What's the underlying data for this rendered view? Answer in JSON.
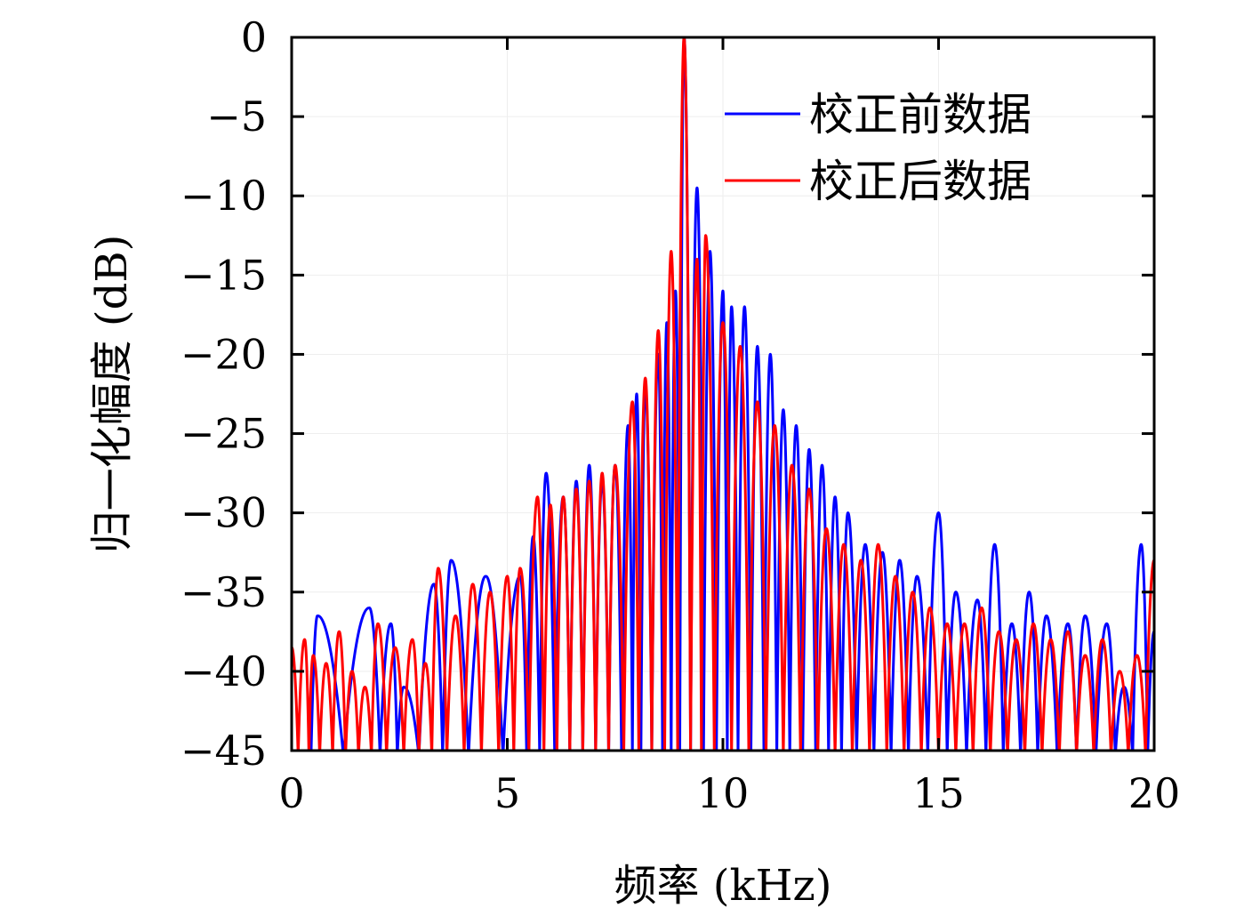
{
  "chart_data": {
    "type": "line",
    "xlabel": "频率 (kHz)",
    "ylabel": "归一化幅度 (dB)",
    "xlim": [
      0,
      20
    ],
    "ylim": [
      -45,
      0
    ],
    "xticks": [
      0,
      5,
      10,
      15,
      20
    ],
    "xtick_labels": [
      "0",
      "5",
      "10",
      "15",
      "20"
    ],
    "yticks": [
      0,
      -5,
      -10,
      -15,
      -20,
      -25,
      -30,
      -35,
      -40,
      -45
    ],
    "ytick_labels": [
      "0",
      "−5",
      "−10",
      "−15",
      "−20",
      "−25",
      "−30",
      "−35",
      "−40",
      "−45"
    ],
    "grid": true,
    "legend_position": "top-right",
    "series": [
      {
        "name": "校正前数据",
        "color": "#0000ff",
        "peaks": [
          [
            0.6,
            -36.5
          ],
          [
            1.8,
            -36
          ],
          [
            2.3,
            -37
          ],
          [
            2.6,
            -41
          ],
          [
            3.3,
            -34.5
          ],
          [
            3.7,
            -33
          ],
          [
            4.5,
            -34
          ],
          [
            5.3,
            -34
          ],
          [
            5.6,
            -31.5
          ],
          [
            5.9,
            -27.5
          ],
          [
            6.3,
            -29
          ],
          [
            6.6,
            -28
          ],
          [
            6.9,
            -27
          ],
          [
            7.2,
            -28
          ],
          [
            7.5,
            -27
          ],
          [
            7.8,
            -24.5
          ],
          [
            8.0,
            -22.5
          ],
          [
            8.2,
            -22
          ],
          [
            8.5,
            -20
          ],
          [
            8.7,
            -18
          ],
          [
            8.9,
            -16
          ],
          [
            9.1,
            0
          ],
          [
            9.4,
            -9.5
          ],
          [
            9.7,
            -13.5
          ],
          [
            10.0,
            -16
          ],
          [
            10.2,
            -17
          ],
          [
            10.5,
            -17
          ],
          [
            10.8,
            -19.5
          ],
          [
            11.1,
            -20
          ],
          [
            11.4,
            -23.5
          ],
          [
            11.7,
            -24.5
          ],
          [
            12.0,
            -26
          ],
          [
            12.3,
            -27
          ],
          [
            12.6,
            -29
          ],
          [
            12.9,
            -30
          ],
          [
            13.3,
            -32
          ],
          [
            13.7,
            -32.5
          ],
          [
            14.1,
            -33
          ],
          [
            14.5,
            -34
          ],
          [
            15.0,
            -30
          ],
          [
            15.4,
            -35
          ],
          [
            15.9,
            -35.5
          ],
          [
            16.3,
            -32
          ],
          [
            16.7,
            -37
          ],
          [
            17.1,
            -35
          ],
          [
            17.5,
            -36.5
          ],
          [
            18.0,
            -37
          ],
          [
            18.4,
            -36.5
          ],
          [
            18.9,
            -37
          ],
          [
            19.3,
            -41
          ],
          [
            19.7,
            -32
          ],
          [
            20.0,
            -37.5
          ]
        ]
      },
      {
        "name": "校正后数据",
        "color": "#ff0000",
        "peaks": [
          [
            0.0,
            -38.5
          ],
          [
            0.3,
            -38
          ],
          [
            0.5,
            -39
          ],
          [
            0.8,
            -39.5
          ],
          [
            1.1,
            -37.5
          ],
          [
            1.4,
            -40
          ],
          [
            1.7,
            -41
          ],
          [
            2.0,
            -37
          ],
          [
            2.4,
            -38.5
          ],
          [
            2.8,
            -38
          ],
          [
            3.1,
            -39.5
          ],
          [
            3.4,
            -33.5
          ],
          [
            3.8,
            -36.5
          ],
          [
            4.2,
            -34.5
          ],
          [
            4.6,
            -35
          ],
          [
            5.0,
            -34
          ],
          [
            5.3,
            -33.5
          ],
          [
            5.7,
            -29
          ],
          [
            6.0,
            -29.5
          ],
          [
            6.3,
            -29
          ],
          [
            6.6,
            -28.5
          ],
          [
            6.9,
            -28
          ],
          [
            7.2,
            -27.5
          ],
          [
            7.5,
            -27
          ],
          [
            7.9,
            -23
          ],
          [
            8.2,
            -21.5
          ],
          [
            8.5,
            -18.5
          ],
          [
            8.8,
            -13.5
          ],
          [
            9.1,
            0
          ],
          [
            9.4,
            -14
          ],
          [
            9.6,
            -12.5
          ],
          [
            10.0,
            -18
          ],
          [
            10.4,
            -19.5
          ],
          [
            10.8,
            -23
          ],
          [
            11.2,
            -24.5
          ],
          [
            11.6,
            -27
          ],
          [
            12.0,
            -28.5
          ],
          [
            12.4,
            -31
          ],
          [
            12.8,
            -32
          ],
          [
            13.2,
            -33
          ],
          [
            13.6,
            -32
          ],
          [
            14.0,
            -34
          ],
          [
            14.4,
            -35
          ],
          [
            14.8,
            -36
          ],
          [
            15.2,
            -37
          ],
          [
            15.6,
            -37
          ],
          [
            16.0,
            -36
          ],
          [
            16.4,
            -37.5
          ],
          [
            16.8,
            -38
          ],
          [
            17.2,
            -37
          ],
          [
            17.6,
            -38
          ],
          [
            18.0,
            -37.5
          ],
          [
            18.4,
            -39
          ],
          [
            18.8,
            -38
          ],
          [
            19.2,
            -40
          ],
          [
            19.6,
            -39
          ],
          [
            20.0,
            -33
          ]
        ]
      }
    ]
  }
}
